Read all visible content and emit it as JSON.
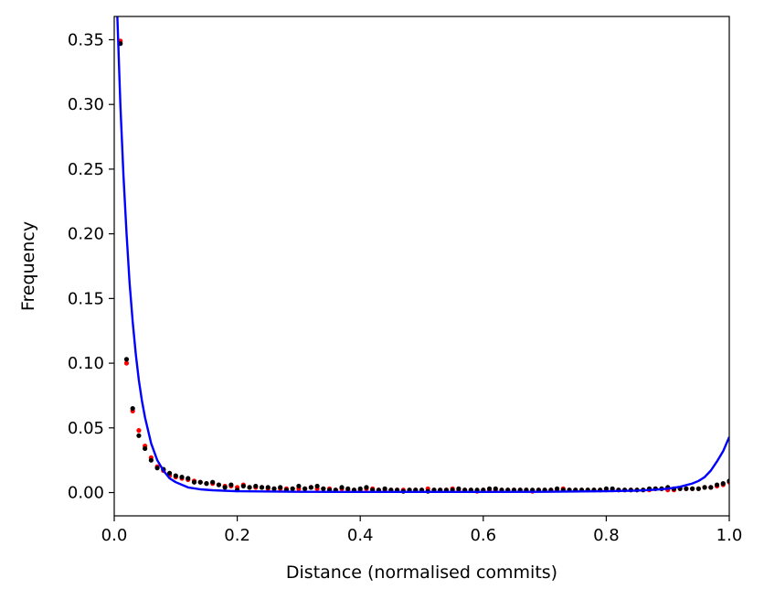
{
  "chart_data": {
    "type": "scatter",
    "title": "",
    "xlabel": "Distance (normalised commits)",
    "ylabel": "Frequency",
    "xlim": [
      0.0,
      1.0
    ],
    "ylim": [
      -0.018,
      0.368
    ],
    "grid": false,
    "legend": "none",
    "xticks": [
      0.0,
      0.2,
      0.4,
      0.6,
      0.8,
      1.0
    ],
    "xtick_labels": [
      "0.0",
      "0.2",
      "0.4",
      "0.6",
      "0.8",
      "1.0"
    ],
    "yticks": [
      0.0,
      0.05,
      0.1,
      0.15,
      0.2,
      0.25,
      0.3,
      0.35
    ],
    "ytick_labels": [
      "0.00",
      "0.05",
      "0.10",
      "0.15",
      "0.20",
      "0.25",
      "0.30",
      "0.35"
    ],
    "colors": {
      "red_points": "#ff0000",
      "black_points": "#000000",
      "fit_line": "#0000ff"
    },
    "series": [
      {
        "type": "scatter",
        "color": "#ff0000",
        "points": [
          [
            0.01,
            0.349
          ],
          [
            0.02,
            0.1
          ],
          [
            0.03,
            0.063
          ],
          [
            0.04,
            0.048
          ],
          [
            0.05,
            0.036
          ],
          [
            0.06,
            0.027
          ],
          [
            0.07,
            0.02
          ],
          [
            0.08,
            0.017
          ],
          [
            0.09,
            0.013
          ],
          [
            0.1,
            0.012
          ],
          [
            0.11,
            0.011
          ],
          [
            0.12,
            0.01
          ],
          [
            0.13,
            0.009
          ],
          [
            0.14,
            0.008
          ],
          [
            0.15,
            0.007
          ],
          [
            0.16,
            0.007
          ],
          [
            0.17,
            0.006
          ],
          [
            0.18,
            0.005
          ],
          [
            0.19,
            0.005
          ],
          [
            0.2,
            0.004
          ],
          [
            0.21,
            0.006
          ],
          [
            0.22,
            0.004
          ],
          [
            0.23,
            0.004
          ],
          [
            0.24,
            0.004
          ],
          [
            0.25,
            0.003
          ],
          [
            0.26,
            0.003
          ],
          [
            0.27,
            0.003
          ],
          [
            0.28,
            0.003
          ],
          [
            0.29,
            0.003
          ],
          [
            0.3,
            0.003
          ],
          [
            0.31,
            0.003
          ],
          [
            0.32,
            0.004
          ],
          [
            0.33,
            0.003
          ],
          [
            0.34,
            0.003
          ],
          [
            0.35,
            0.003
          ],
          [
            0.36,
            0.002
          ],
          [
            0.37,
            0.003
          ],
          [
            0.38,
            0.002
          ],
          [
            0.39,
            0.002
          ],
          [
            0.4,
            0.002
          ],
          [
            0.41,
            0.003
          ],
          [
            0.42,
            0.003
          ],
          [
            0.43,
            0.002
          ],
          [
            0.44,
            0.002
          ],
          [
            0.45,
            0.002
          ],
          [
            0.46,
            0.002
          ],
          [
            0.47,
            0.002
          ],
          [
            0.48,
            0.002
          ],
          [
            0.49,
            0.002
          ],
          [
            0.5,
            0.002
          ],
          [
            0.51,
            0.003
          ],
          [
            0.52,
            0.002
          ],
          [
            0.53,
            0.002
          ],
          [
            0.54,
            0.002
          ],
          [
            0.55,
            0.003
          ],
          [
            0.56,
            0.002
          ],
          [
            0.57,
            0.002
          ],
          [
            0.58,
            0.002
          ],
          [
            0.59,
            0.001
          ],
          [
            0.6,
            0.002
          ],
          [
            0.61,
            0.002
          ],
          [
            0.62,
            0.002
          ],
          [
            0.63,
            0.002
          ],
          [
            0.64,
            0.002
          ],
          [
            0.65,
            0.002
          ],
          [
            0.66,
            0.002
          ],
          [
            0.67,
            0.002
          ],
          [
            0.68,
            0.001
          ],
          [
            0.69,
            0.002
          ],
          [
            0.7,
            0.002
          ],
          [
            0.71,
            0.002
          ],
          [
            0.72,
            0.002
          ],
          [
            0.73,
            0.003
          ],
          [
            0.74,
            0.002
          ],
          [
            0.75,
            0.002
          ],
          [
            0.76,
            0.002
          ],
          [
            0.77,
            0.002
          ],
          [
            0.78,
            0.002
          ],
          [
            0.79,
            0.002
          ],
          [
            0.8,
            0.002
          ],
          [
            0.81,
            0.002
          ],
          [
            0.82,
            0.002
          ],
          [
            0.83,
            0.002
          ],
          [
            0.84,
            0.002
          ],
          [
            0.85,
            0.002
          ],
          [
            0.86,
            0.002
          ],
          [
            0.87,
            0.002
          ],
          [
            0.88,
            0.003
          ],
          [
            0.89,
            0.003
          ],
          [
            0.9,
            0.002
          ],
          [
            0.91,
            0.002
          ],
          [
            0.92,
            0.003
          ],
          [
            0.93,
            0.003
          ],
          [
            0.94,
            0.003
          ],
          [
            0.95,
            0.003
          ],
          [
            0.96,
            0.004
          ],
          [
            0.97,
            0.004
          ],
          [
            0.98,
            0.005
          ],
          [
            0.99,
            0.006
          ],
          [
            1.0,
            0.008
          ]
        ]
      },
      {
        "type": "scatter",
        "color": "#000000",
        "points": [
          [
            0.01,
            0.347
          ],
          [
            0.02,
            0.103
          ],
          [
            0.03,
            0.065
          ],
          [
            0.04,
            0.044
          ],
          [
            0.05,
            0.034
          ],
          [
            0.06,
            0.025
          ],
          [
            0.07,
            0.019
          ],
          [
            0.08,
            0.018
          ],
          [
            0.09,
            0.015
          ],
          [
            0.1,
            0.013
          ],
          [
            0.11,
            0.012
          ],
          [
            0.12,
            0.011
          ],
          [
            0.13,
            0.008
          ],
          [
            0.14,
            0.008
          ],
          [
            0.15,
            0.007
          ],
          [
            0.16,
            0.008
          ],
          [
            0.17,
            0.006
          ],
          [
            0.18,
            0.004
          ],
          [
            0.19,
            0.006
          ],
          [
            0.2,
            0.002
          ],
          [
            0.21,
            0.005
          ],
          [
            0.22,
            0.004
          ],
          [
            0.23,
            0.005
          ],
          [
            0.24,
            0.004
          ],
          [
            0.25,
            0.004
          ],
          [
            0.26,
            0.003
          ],
          [
            0.27,
            0.004
          ],
          [
            0.28,
            0.002
          ],
          [
            0.29,
            0.003
          ],
          [
            0.3,
            0.005
          ],
          [
            0.31,
            0.003
          ],
          [
            0.32,
            0.004
          ],
          [
            0.33,
            0.005
          ],
          [
            0.34,
            0.003
          ],
          [
            0.35,
            0.002
          ],
          [
            0.36,
            0.002
          ],
          [
            0.37,
            0.004
          ],
          [
            0.38,
            0.003
          ],
          [
            0.39,
            0.002
          ],
          [
            0.4,
            0.003
          ],
          [
            0.41,
            0.004
          ],
          [
            0.42,
            0.002
          ],
          [
            0.43,
            0.002
          ],
          [
            0.44,
            0.003
          ],
          [
            0.45,
            0.002
          ],
          [
            0.46,
            0.002
          ],
          [
            0.47,
            0.001
          ],
          [
            0.48,
            0.002
          ],
          [
            0.49,
            0.002
          ],
          [
            0.5,
            0.002
          ],
          [
            0.51,
            0.001
          ],
          [
            0.52,
            0.002
          ],
          [
            0.53,
            0.002
          ],
          [
            0.54,
            0.002
          ],
          [
            0.55,
            0.002
          ],
          [
            0.56,
            0.003
          ],
          [
            0.57,
            0.002
          ],
          [
            0.58,
            0.002
          ],
          [
            0.59,
            0.002
          ],
          [
            0.6,
            0.002
          ],
          [
            0.61,
            0.003
          ],
          [
            0.62,
            0.003
          ],
          [
            0.63,
            0.002
          ],
          [
            0.64,
            0.002
          ],
          [
            0.65,
            0.002
          ],
          [
            0.66,
            0.002
          ],
          [
            0.67,
            0.002
          ],
          [
            0.68,
            0.002
          ],
          [
            0.69,
            0.002
          ],
          [
            0.7,
            0.002
          ],
          [
            0.71,
            0.002
          ],
          [
            0.72,
            0.003
          ],
          [
            0.73,
            0.002
          ],
          [
            0.74,
            0.002
          ],
          [
            0.75,
            0.002
          ],
          [
            0.76,
            0.002
          ],
          [
            0.77,
            0.002
          ],
          [
            0.78,
            0.002
          ],
          [
            0.79,
            0.002
          ],
          [
            0.8,
            0.003
          ],
          [
            0.81,
            0.003
          ],
          [
            0.82,
            0.002
          ],
          [
            0.83,
            0.002
          ],
          [
            0.84,
            0.002
          ],
          [
            0.85,
            0.002
          ],
          [
            0.86,
            0.002
          ],
          [
            0.87,
            0.003
          ],
          [
            0.88,
            0.003
          ],
          [
            0.89,
            0.003
          ],
          [
            0.9,
            0.004
          ],
          [
            0.91,
            0.003
          ],
          [
            0.92,
            0.003
          ],
          [
            0.93,
            0.003
          ],
          [
            0.94,
            0.003
          ],
          [
            0.95,
            0.003
          ],
          [
            0.96,
            0.004
          ],
          [
            0.97,
            0.004
          ],
          [
            0.98,
            0.006
          ],
          [
            0.99,
            0.007
          ],
          [
            1.0,
            0.009
          ]
        ]
      },
      {
        "type": "line",
        "color": "#0000ff",
        "points": [
          [
            0.005,
            0.368
          ],
          [
            0.01,
            0.3
          ],
          [
            0.015,
            0.245
          ],
          [
            0.02,
            0.2
          ],
          [
            0.025,
            0.162
          ],
          [
            0.03,
            0.132
          ],
          [
            0.035,
            0.107
          ],
          [
            0.04,
            0.087
          ],
          [
            0.045,
            0.071
          ],
          [
            0.05,
            0.058
          ],
          [
            0.06,
            0.038
          ],
          [
            0.07,
            0.025
          ],
          [
            0.08,
            0.017
          ],
          [
            0.09,
            0.011
          ],
          [
            0.1,
            0.008
          ],
          [
            0.12,
            0.004
          ],
          [
            0.14,
            0.0025
          ],
          [
            0.16,
            0.0018
          ],
          [
            0.2,
            0.001
          ],
          [
            0.3,
            0.0006
          ],
          [
            0.4,
            0.0005
          ],
          [
            0.5,
            0.0005
          ],
          [
            0.6,
            0.0005
          ],
          [
            0.7,
            0.0006
          ],
          [
            0.8,
            0.001
          ],
          [
            0.85,
            0.0015
          ],
          [
            0.88,
            0.0022
          ],
          [
            0.9,
            0.003
          ],
          [
            0.92,
            0.0045
          ],
          [
            0.94,
            0.007
          ],
          [
            0.95,
            0.009
          ],
          [
            0.96,
            0.012
          ],
          [
            0.97,
            0.017
          ],
          [
            0.98,
            0.024
          ],
          [
            0.99,
            0.032
          ],
          [
            1.0,
            0.043
          ]
        ]
      }
    ]
  }
}
